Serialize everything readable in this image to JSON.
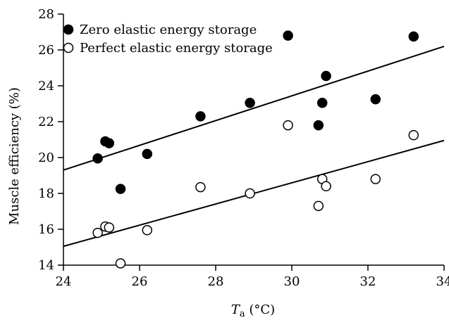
{
  "chart_data": {
    "type": "scatter",
    "title": "",
    "xlabel": {
      "main": "T",
      "sub": "a",
      "unit": " (°C)"
    },
    "ylabel": "Muscle efficiency (%)",
    "xlim": [
      24,
      34
    ],
    "ylim": [
      14,
      28
    ],
    "xticks": [
      24,
      26,
      28,
      30,
      32,
      34
    ],
    "yticks": [
      14,
      16,
      18,
      20,
      22,
      24,
      26,
      28
    ],
    "legend_position": "top-left",
    "series": [
      {
        "name": "Zero elastic energy storage",
        "marker": "filled-circle",
        "color": "#000000",
        "points": [
          [
            24.9,
            19.95
          ],
          [
            25.1,
            20.9
          ],
          [
            25.2,
            20.8
          ],
          [
            25.5,
            18.25
          ],
          [
            26.2,
            20.2
          ],
          [
            27.6,
            22.3
          ],
          [
            28.9,
            23.05
          ],
          [
            29.9,
            26.8
          ],
          [
            30.7,
            21.8
          ],
          [
            30.8,
            23.05
          ],
          [
            30.9,
            24.55
          ],
          [
            32.2,
            23.25
          ],
          [
            33.2,
            26.75
          ]
        ],
        "fit_line": [
          [
            24.0,
            19.3
          ],
          [
            34.0,
            26.2
          ]
        ]
      },
      {
        "name": "Perfect elastic energy storage",
        "marker": "open-circle",
        "color": "#000000",
        "points": [
          [
            24.9,
            15.8
          ],
          [
            25.1,
            16.15
          ],
          [
            25.2,
            16.1
          ],
          [
            25.5,
            14.1
          ],
          [
            26.2,
            15.95
          ],
          [
            27.6,
            18.35
          ],
          [
            28.9,
            18.0
          ],
          [
            29.9,
            21.8
          ],
          [
            30.7,
            17.3
          ],
          [
            30.8,
            18.8
          ],
          [
            30.9,
            18.4
          ],
          [
            32.2,
            18.8
          ],
          [
            33.2,
            21.25
          ]
        ],
        "fit_line": [
          [
            24.0,
            15.05
          ],
          [
            34.0,
            20.95
          ]
        ]
      }
    ]
  }
}
